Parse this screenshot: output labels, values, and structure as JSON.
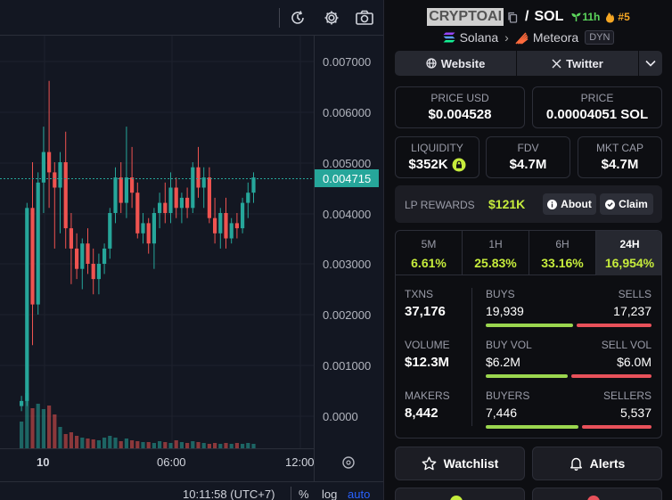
{
  "chart": {
    "price_axis": [
      "0.007000",
      "0.006000",
      "0.005000",
      "0.004000",
      "0.003000",
      "0.002000",
      "0.001000",
      "0.0000"
    ],
    "current_price_label": "0.004715",
    "time_axis": [
      "10",
      "06:00",
      "12:00"
    ],
    "clock": "10:11:58 (UTC+7)",
    "pct_label": "%",
    "log_label": "log",
    "auto_label": "auto",
    "toolbar_icons": [
      "replay-icon",
      "gear-icon",
      "camera-icon"
    ],
    "colors": {
      "up": "#26a69a",
      "down": "#ef5350",
      "background": "#131722"
    }
  },
  "token": {
    "symbol": "CRYPTOAI",
    "quote": "SOL",
    "age": "11h",
    "rank": "#5",
    "chain": "Solana",
    "dex": "Meteora",
    "pool_type": "DYN"
  },
  "links": {
    "website": "Website",
    "twitter": "Twitter"
  },
  "prices": {
    "usd_label": "PRICE USD",
    "usd_value": "$0.004528",
    "native_label": "PRICE",
    "native_value": "0.00004051 SOL"
  },
  "metrics": {
    "liquidity_label": "LIQUIDITY",
    "liquidity_value": "$352K",
    "fdv_label": "FDV",
    "fdv_value": "$4.7M",
    "mcap_label": "MKT CAP",
    "mcap_value": "$4.7M"
  },
  "lp": {
    "label": "LP REWARDS",
    "value": "$121K",
    "about": "About",
    "claim": "Claim"
  },
  "timeframes": [
    {
      "name": "5M",
      "change": "6.61%"
    },
    {
      "name": "1H",
      "change": "25.83%"
    },
    {
      "name": "6H",
      "change": "33.16%"
    },
    {
      "name": "24H",
      "change": "16,954%"
    }
  ],
  "stats": {
    "txns_label": "TXNS",
    "txns_value": "37,176",
    "volume_label": "VOLUME",
    "volume_value": "$12.3M",
    "makers_label": "MAKERS",
    "makers_value": "8,442",
    "buys_label": "BUYS",
    "buys_value": "19,939",
    "sells_label": "SELLS",
    "sells_value": "17,237",
    "buys_ratio": 0.536,
    "buyvol_label": "BUY VOL",
    "buyvol_value": "$6.2M",
    "sellvol_label": "SELL VOL",
    "sellvol_value": "$6.0M",
    "buyvol_ratio": 0.508,
    "buyers_label": "BUYERS",
    "buyers_value": "7,446",
    "sellers_label": "SELLERS",
    "sellers_value": "5,537",
    "buyers_ratio": 0.574
  },
  "actions": {
    "watchlist": "Watchlist",
    "alerts": "Alerts"
  }
}
